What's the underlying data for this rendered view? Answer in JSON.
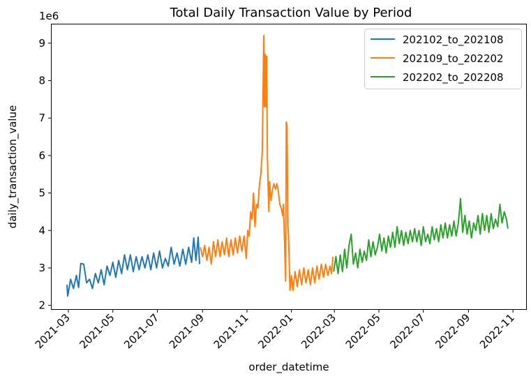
{
  "chart_data": {
    "type": "line",
    "title": "Total Daily Transaction Value by Period",
    "xlabel": "order_datetime",
    "ylabel": "daily_transaction_value",
    "y_offset_label": "1e6",
    "y_multiplier": 1000000,
    "xlim": [
      "2021-02-06",
      "2022-11-19"
    ],
    "ylim": [
      1.9,
      9.5
    ],
    "x_ticks": [
      "2021-03",
      "2021-05",
      "2021-07",
      "2021-09",
      "2021-11",
      "2022-01",
      "2022-03",
      "2022-05",
      "2022-07",
      "2022-09",
      "2022-11"
    ],
    "y_ticks": [
      2,
      3,
      4,
      5,
      6,
      7,
      8,
      9
    ],
    "grid": false,
    "legend_position": "top-right",
    "series": [
      {
        "name": "202102_to_202108",
        "color": "#1f77b4",
        "points": [
          [
            "2021-02-27",
            2.55
          ],
          [
            "2021-02-28",
            2.25
          ],
          [
            "2021-03-04",
            2.7
          ],
          [
            "2021-03-08",
            2.45
          ],
          [
            "2021-03-12",
            2.8
          ],
          [
            "2021-03-15",
            2.48
          ],
          [
            "2021-03-18",
            3.12
          ],
          [
            "2021-03-22",
            3.1
          ],
          [
            "2021-03-26",
            2.6
          ],
          [
            "2021-03-30",
            2.7
          ],
          [
            "2021-04-03",
            2.45
          ],
          [
            "2021-04-07",
            2.85
          ],
          [
            "2021-04-11",
            2.6
          ],
          [
            "2021-04-15",
            2.95
          ],
          [
            "2021-04-19",
            2.55
          ],
          [
            "2021-04-23",
            3.05
          ],
          [
            "2021-04-27",
            2.8
          ],
          [
            "2021-05-01",
            3.15
          ],
          [
            "2021-05-05",
            2.75
          ],
          [
            "2021-05-09",
            3.2
          ],
          [
            "2021-05-13",
            2.85
          ],
          [
            "2021-05-17",
            3.35
          ],
          [
            "2021-05-21",
            2.95
          ],
          [
            "2021-05-25",
            3.35
          ],
          [
            "2021-05-29",
            2.9
          ],
          [
            "2021-06-02",
            3.3
          ],
          [
            "2021-06-06",
            2.95
          ],
          [
            "2021-06-10",
            3.3
          ],
          [
            "2021-06-14",
            3.0
          ],
          [
            "2021-06-18",
            3.35
          ],
          [
            "2021-06-22",
            2.95
          ],
          [
            "2021-06-26",
            3.4
          ],
          [
            "2021-06-30",
            3.0
          ],
          [
            "2021-07-04",
            3.45
          ],
          [
            "2021-07-08",
            3.0
          ],
          [
            "2021-07-12",
            3.25
          ],
          [
            "2021-07-16",
            3.05
          ],
          [
            "2021-07-20",
            3.55
          ],
          [
            "2021-07-24",
            3.1
          ],
          [
            "2021-07-28",
            3.4
          ],
          [
            "2021-08-01",
            3.05
          ],
          [
            "2021-08-05",
            3.5
          ],
          [
            "2021-08-09",
            3.1
          ],
          [
            "2021-08-13",
            3.55
          ],
          [
            "2021-08-17",
            3.15
          ],
          [
            "2021-08-20",
            3.8
          ],
          [
            "2021-08-23",
            3.2
          ],
          [
            "2021-08-26",
            3.82
          ],
          [
            "2021-08-28",
            3.1
          ]
        ]
      },
      {
        "name": "202109_to_202202",
        "color": "#ff7f0e",
        "points": [
          [
            "2021-08-29",
            3.55
          ],
          [
            "2021-09-01",
            3.3
          ],
          [
            "2021-09-04",
            3.6
          ],
          [
            "2021-09-07",
            3.2
          ],
          [
            "2021-09-10",
            3.55
          ],
          [
            "2021-09-13",
            3.1
          ],
          [
            "2021-09-16",
            3.7
          ],
          [
            "2021-09-19",
            3.3
          ],
          [
            "2021-09-22",
            3.75
          ],
          [
            "2021-09-25",
            3.3
          ],
          [
            "2021-09-28",
            3.7
          ],
          [
            "2021-10-01",
            3.35
          ],
          [
            "2021-10-04",
            3.8
          ],
          [
            "2021-10-07",
            3.3
          ],
          [
            "2021-10-10",
            3.75
          ],
          [
            "2021-10-13",
            3.35
          ],
          [
            "2021-10-16",
            3.8
          ],
          [
            "2021-10-19",
            3.4
          ],
          [
            "2021-10-22",
            3.85
          ],
          [
            "2021-10-25",
            3.45
          ],
          [
            "2021-10-28",
            3.85
          ],
          [
            "2021-10-31",
            3.25
          ],
          [
            "2021-11-02",
            4.0
          ],
          [
            "2021-11-04",
            3.85
          ],
          [
            "2021-11-06",
            4.5
          ],
          [
            "2021-11-08",
            4.3
          ],
          [
            "2021-11-10",
            5.0
          ],
          [
            "2021-11-12",
            4.1
          ],
          [
            "2021-11-14",
            4.7
          ],
          [
            "2021-11-16",
            4.6
          ],
          [
            "2021-11-18",
            5.2
          ],
          [
            "2021-11-20",
            5.5
          ],
          [
            "2021-11-22",
            6.1
          ],
          [
            "2021-11-24",
            9.2
          ],
          [
            "2021-11-25",
            7.3
          ],
          [
            "2021-11-26",
            8.7
          ],
          [
            "2021-11-27",
            7.3
          ],
          [
            "2021-11-28",
            8.65
          ],
          [
            "2021-11-29",
            6.0
          ],
          [
            "2021-11-30",
            5.2
          ],
          [
            "2021-12-01",
            4.5
          ],
          [
            "2021-12-02",
            5.3
          ],
          [
            "2021-12-04",
            4.8
          ],
          [
            "2021-12-06",
            5.1
          ],
          [
            "2021-12-08",
            5.25
          ],
          [
            "2021-12-10",
            5.1
          ],
          [
            "2021-12-12",
            5.25
          ],
          [
            "2021-12-14",
            5.05
          ],
          [
            "2021-12-16",
            4.7
          ],
          [
            "2021-12-18",
            4.6
          ],
          [
            "2021-12-20",
            4.4
          ],
          [
            "2021-12-21",
            4.7
          ],
          [
            "2021-12-22",
            4.1
          ],
          [
            "2021-12-24",
            2.65
          ],
          [
            "2021-12-25",
            6.9
          ],
          [
            "2021-12-26",
            6.8
          ],
          [
            "2021-12-27",
            4.2
          ],
          [
            "2021-12-28",
            3.85
          ],
          [
            "2021-12-30",
            2.4
          ],
          [
            "2022-01-01",
            2.8
          ],
          [
            "2022-01-03",
            2.4
          ],
          [
            "2022-01-06",
            2.9
          ],
          [
            "2022-01-09",
            2.5
          ],
          [
            "2022-01-12",
            2.95
          ],
          [
            "2022-01-15",
            2.55
          ],
          [
            "2022-01-18",
            3.0
          ],
          [
            "2022-01-21",
            2.6
          ],
          [
            "2022-01-24",
            2.95
          ],
          [
            "2022-01-27",
            2.55
          ],
          [
            "2022-01-30",
            3.0
          ],
          [
            "2022-02-02",
            2.6
          ],
          [
            "2022-02-05",
            3.05
          ],
          [
            "2022-02-08",
            2.7
          ],
          [
            "2022-02-11",
            3.1
          ],
          [
            "2022-02-14",
            2.75
          ],
          [
            "2022-02-17",
            3.1
          ],
          [
            "2022-02-20",
            2.8
          ],
          [
            "2022-02-23",
            3.05
          ],
          [
            "2022-02-25",
            2.85
          ],
          [
            "2022-02-27",
            3.3
          ]
        ]
      },
      {
        "name": "202202_to_202208",
        "color": "#2ca02c",
        "points": [
          [
            "2022-02-28",
            2.9
          ],
          [
            "2022-03-03",
            3.3
          ],
          [
            "2022-03-06",
            2.85
          ],
          [
            "2022-03-09",
            3.35
          ],
          [
            "2022-03-12",
            2.9
          ],
          [
            "2022-03-15",
            3.5
          ],
          [
            "2022-03-18",
            3.0
          ],
          [
            "2022-03-21",
            3.6
          ],
          [
            "2022-03-24",
            3.9
          ],
          [
            "2022-03-27",
            3.1
          ],
          [
            "2022-03-30",
            3.4
          ],
          [
            "2022-04-02",
            3.0
          ],
          [
            "2022-04-05",
            3.5
          ],
          [
            "2022-04-08",
            3.15
          ],
          [
            "2022-04-11",
            3.45
          ],
          [
            "2022-04-14",
            3.2
          ],
          [
            "2022-04-17",
            3.75
          ],
          [
            "2022-04-20",
            3.3
          ],
          [
            "2022-04-23",
            3.7
          ],
          [
            "2022-04-26",
            3.35
          ],
          [
            "2022-04-29",
            3.55
          ],
          [
            "2022-05-02",
            3.9
          ],
          [
            "2022-05-05",
            3.45
          ],
          [
            "2022-05-08",
            3.8
          ],
          [
            "2022-05-11",
            3.4
          ],
          [
            "2022-05-14",
            3.85
          ],
          [
            "2022-05-17",
            3.55
          ],
          [
            "2022-05-20",
            3.95
          ],
          [
            "2022-05-23",
            3.55
          ],
          [
            "2022-05-26",
            4.1
          ],
          [
            "2022-05-29",
            3.65
          ],
          [
            "2022-06-01",
            4.0
          ],
          [
            "2022-06-04",
            3.6
          ],
          [
            "2022-06-07",
            3.95
          ],
          [
            "2022-06-10",
            3.65
          ],
          [
            "2022-06-13",
            4.0
          ],
          [
            "2022-06-16",
            3.7
          ],
          [
            "2022-06-19",
            4.05
          ],
          [
            "2022-06-22",
            3.7
          ],
          [
            "2022-06-25",
            4.0
          ],
          [
            "2022-06-28",
            3.6
          ],
          [
            "2022-07-01",
            4.1
          ],
          [
            "2022-07-04",
            3.7
          ],
          [
            "2022-07-07",
            3.9
          ],
          [
            "2022-07-10",
            3.65
          ],
          [
            "2022-07-13",
            4.1
          ],
          [
            "2022-07-16",
            3.75
          ],
          [
            "2022-07-19",
            4.05
          ],
          [
            "2022-07-22",
            3.7
          ],
          [
            "2022-07-25",
            4.15
          ],
          [
            "2022-07-28",
            3.8
          ],
          [
            "2022-07-31",
            4.2
          ],
          [
            "2022-08-03",
            3.8
          ],
          [
            "2022-08-06",
            4.15
          ],
          [
            "2022-08-09",
            3.85
          ],
          [
            "2022-08-12",
            4.25
          ],
          [
            "2022-08-15",
            3.85
          ],
          [
            "2022-08-18",
            4.2
          ],
          [
            "2022-08-21",
            4.85
          ],
          [
            "2022-08-24",
            3.95
          ],
          [
            "2022-08-27",
            4.4
          ],
          [
            "2022-08-30",
            3.9
          ],
          [
            "2022-09-02",
            4.25
          ],
          [
            "2022-09-05",
            3.8
          ],
          [
            "2022-09-08",
            4.2
          ],
          [
            "2022-09-11",
            4.0
          ],
          [
            "2022-09-14",
            4.4
          ],
          [
            "2022-09-17",
            3.9
          ],
          [
            "2022-09-20",
            4.45
          ],
          [
            "2022-09-23",
            4.0
          ],
          [
            "2022-09-26",
            4.4
          ],
          [
            "2022-09-29",
            3.95
          ],
          [
            "2022-10-02",
            4.45
          ],
          [
            "2022-10-05",
            4.05
          ],
          [
            "2022-10-08",
            4.3
          ],
          [
            "2022-10-11",
            4.1
          ],
          [
            "2022-10-14",
            4.7
          ],
          [
            "2022-10-17",
            4.2
          ],
          [
            "2022-10-20",
            4.5
          ],
          [
            "2022-10-23",
            4.3
          ],
          [
            "2022-10-25",
            4.05
          ]
        ]
      }
    ]
  }
}
